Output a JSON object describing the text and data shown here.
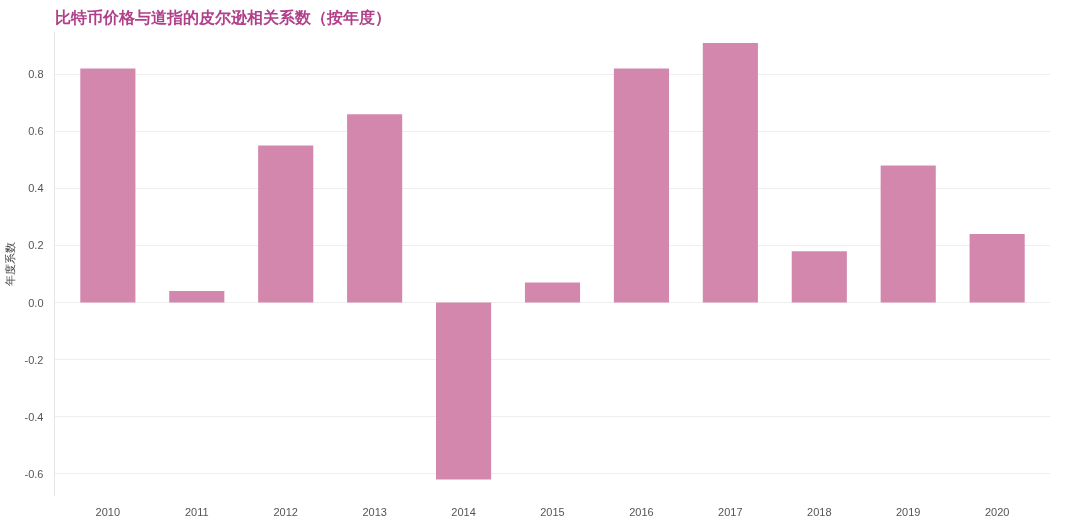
{
  "chart_data": {
    "type": "bar",
    "title": "比特币价格与道指的皮尔逊相关系数（按年度）",
    "ylabel": "年度系数",
    "categories": [
      "2010",
      "2011",
      "2012",
      "2013",
      "2014",
      "2015",
      "2016",
      "2017",
      "2018",
      "2019",
      "2020"
    ],
    "values": [
      0.82,
      0.04,
      0.55,
      0.66,
      -0.62,
      0.07,
      0.82,
      0.91,
      0.18,
      0.48,
      0.24
    ],
    "color": "#d487ad",
    "ylim": [
      -0.68,
      0.95
    ],
    "yticks": [
      {
        "value": -0.6,
        "label": "-0.6"
      },
      {
        "value": -0.4,
        "label": "-0.4"
      },
      {
        "value": -0.2,
        "label": "-0.2"
      },
      {
        "value": 0,
        "label": "0.0"
      },
      {
        "value": 0.2,
        "label": "0.2"
      },
      {
        "value": 0.4,
        "label": "0.4"
      },
      {
        "value": 0.6,
        "label": "0.6"
      },
      {
        "value": 0.8,
        "label": "0.8"
      }
    ],
    "grid": "y"
  }
}
